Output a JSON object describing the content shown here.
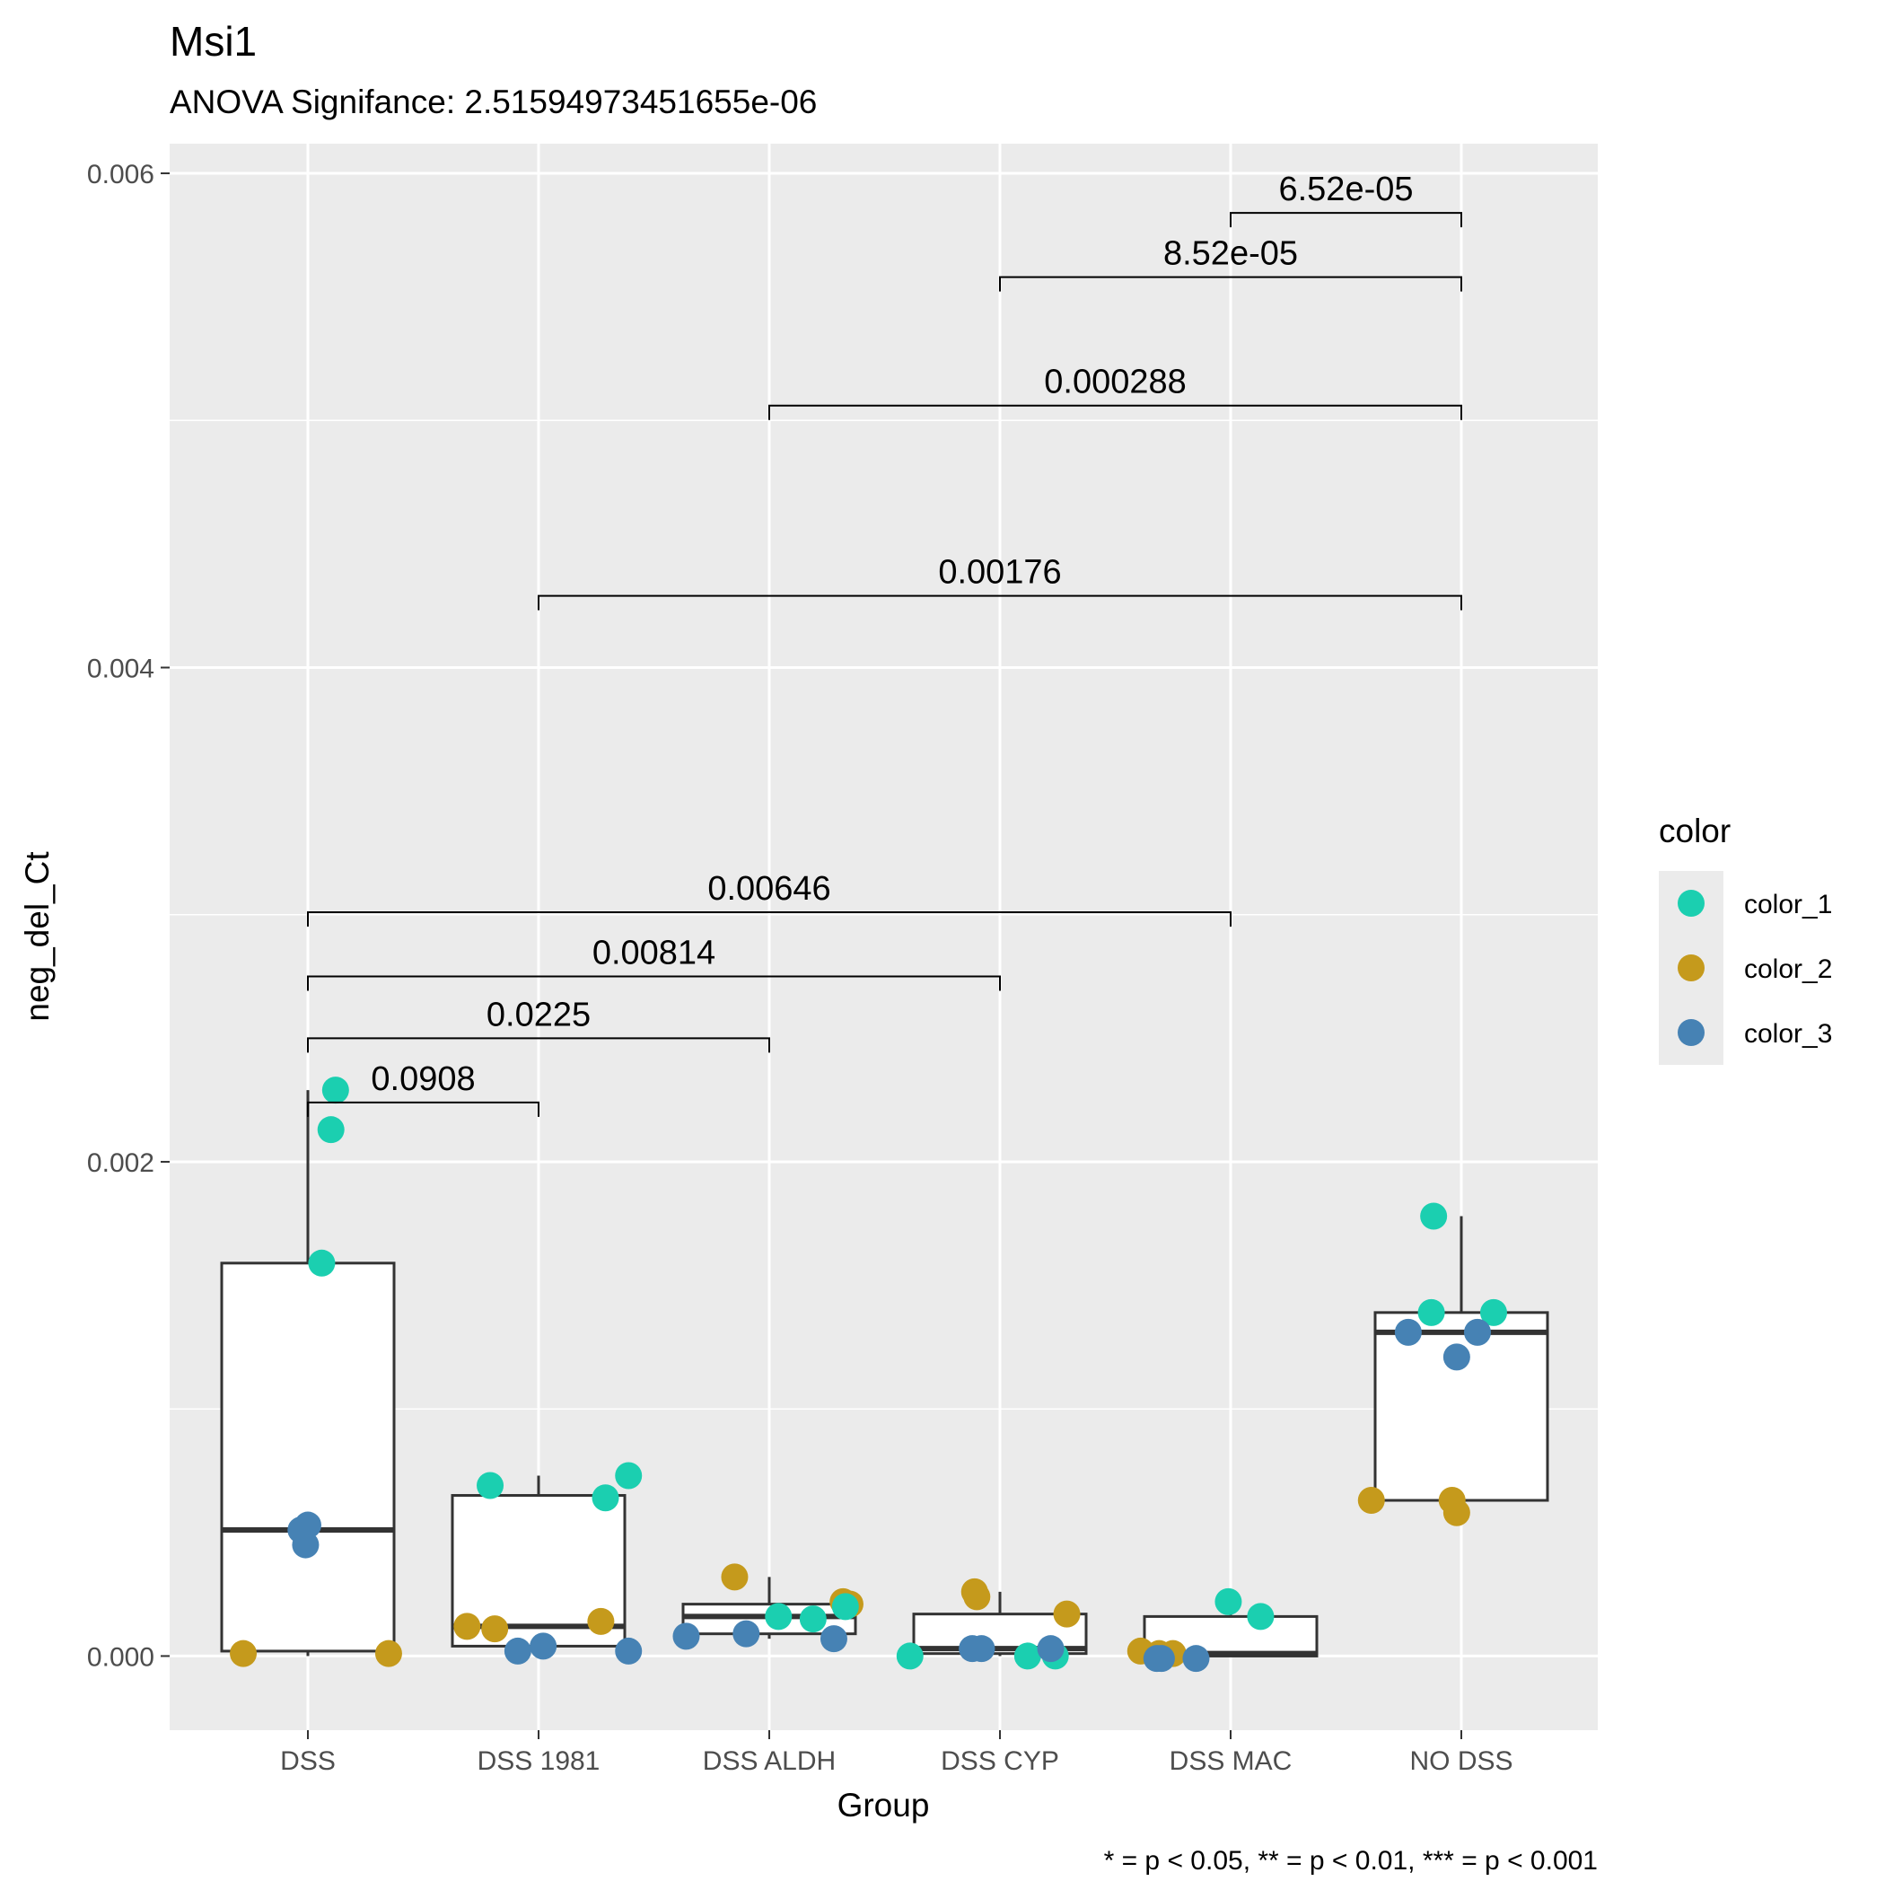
{
  "chart_data": {
    "type": "box",
    "title": "Msi1",
    "subtitle": "ANOVA Signifance: 2.51594973451655e-06",
    "xlabel": "Group",
    "ylabel": "neg_del_Ct",
    "caption": "* = p < 0.05, ** = p < 0.01, *** = p < 0.001",
    "categories": [
      "DSS",
      "DSS 1981",
      "DSS ALDH",
      "DSS CYP",
      "DSS MAC",
      "NO DSS"
    ],
    "yticks": [
      "0.000",
      "0.002",
      "0.004",
      "0.006"
    ],
    "ylim": [
      -0.0003,
      0.00612
    ],
    "grid": true,
    "legend": {
      "title": "color",
      "position": "right",
      "entries": [
        {
          "label": "color_1",
          "color": "#1BCFB0"
        },
        {
          "label": "color_2",
          "color": "#C59A1C"
        },
        {
          "label": "color_3",
          "color": "#4682B4"
        }
      ]
    },
    "boxes": [
      {
        "group": "DSS",
        "q1": 2e-05,
        "median": 0.00051,
        "q3": 0.00159,
        "wmin": 0.0,
        "wmax": 0.00229
      },
      {
        "group": "DSS 1981",
        "q1": 4e-05,
        "median": 0.00012,
        "q3": 0.00065,
        "wmin": 2e-05,
        "wmax": 0.00073
      },
      {
        "group": "DSS ALDH",
        "q1": 9e-05,
        "median": 0.00016,
        "q3": 0.00021,
        "wmin": 7e-05,
        "wmax": 0.00032
      },
      {
        "group": "DSS CYP",
        "q1": 1e-05,
        "median": 3e-05,
        "q3": 0.00017,
        "wmin": 0.0,
        "wmax": 0.00026
      },
      {
        "group": "DSS MAC",
        "q1": 0.0,
        "median": 1e-05,
        "q3": 0.00016,
        "wmin": 0.0,
        "wmax": 0.00022
      },
      {
        "group": "NO DSS",
        "q1": 0.00063,
        "median": 0.00131,
        "q3": 0.00139,
        "wmin": 0.00058,
        "wmax": 0.00178
      }
    ],
    "points": [
      {
        "group": "DSS",
        "dx": 0.12,
        "y": 0.00229,
        "series": "color_1"
      },
      {
        "group": "DSS",
        "dx": 0.1,
        "y": 0.00213,
        "series": "color_1"
      },
      {
        "group": "DSS",
        "dx": 0.06,
        "y": 0.00159,
        "series": "color_1"
      },
      {
        "group": "DSS",
        "dx": -0.03,
        "y": 0.00051,
        "series": "color_3"
      },
      {
        "group": "DSS",
        "dx": 0.0,
        "y": 0.00053,
        "series": "color_3"
      },
      {
        "group": "DSS",
        "dx": -0.01,
        "y": 0.00045,
        "series": "color_3"
      },
      {
        "group": "DSS",
        "dx": -0.28,
        "y": 1e-05,
        "series": "color_2"
      },
      {
        "group": "DSS",
        "dx": 0.35,
        "y": 1e-05,
        "series": "color_2"
      },
      {
        "group": "DSS 1981",
        "dx": -0.21,
        "y": 0.00069,
        "series": "color_1"
      },
      {
        "group": "DSS 1981",
        "dx": 0.29,
        "y": 0.00064,
        "series": "color_1"
      },
      {
        "group": "DSS 1981",
        "dx": 0.39,
        "y": 0.00073,
        "series": "color_1"
      },
      {
        "group": "DSS 1981",
        "dx": -0.31,
        "y": 0.00012,
        "series": "color_2"
      },
      {
        "group": "DSS 1981",
        "dx": -0.19,
        "y": 0.00011,
        "series": "color_2"
      },
      {
        "group": "DSS 1981",
        "dx": 0.27,
        "y": 0.00014,
        "series": "color_2"
      },
      {
        "group": "DSS 1981",
        "dx": -0.09,
        "y": 2e-05,
        "series": "color_3"
      },
      {
        "group": "DSS 1981",
        "dx": 0.02,
        "y": 4e-05,
        "series": "color_3"
      },
      {
        "group": "DSS 1981",
        "dx": 0.39,
        "y": 2e-05,
        "series": "color_3"
      },
      {
        "group": "DSS ALDH",
        "dx": -0.15,
        "y": 0.00032,
        "series": "color_2"
      },
      {
        "group": "DSS ALDH",
        "dx": 0.32,
        "y": 0.00022,
        "series": "color_2"
      },
      {
        "group": "DSS ALDH",
        "dx": 0.35,
        "y": 0.00021,
        "series": "color_2"
      },
      {
        "group": "DSS ALDH",
        "dx": 0.04,
        "y": 0.00016,
        "series": "color_1"
      },
      {
        "group": "DSS ALDH",
        "dx": 0.19,
        "y": 0.00015,
        "series": "color_1"
      },
      {
        "group": "DSS ALDH",
        "dx": 0.33,
        "y": 0.0002,
        "series": "color_1"
      },
      {
        "group": "DSS ALDH",
        "dx": -0.36,
        "y": 8e-05,
        "series": "color_3"
      },
      {
        "group": "DSS ALDH",
        "dx": -0.1,
        "y": 9e-05,
        "series": "color_3"
      },
      {
        "group": "DSS ALDH",
        "dx": 0.28,
        "y": 7e-05,
        "series": "color_3"
      },
      {
        "group": "DSS CYP",
        "dx": -0.11,
        "y": 0.00026,
        "series": "color_2"
      },
      {
        "group": "DSS CYP",
        "dx": -0.1,
        "y": 0.00024,
        "series": "color_2"
      },
      {
        "group": "DSS CYP",
        "dx": 0.29,
        "y": 0.00017,
        "series": "color_2"
      },
      {
        "group": "DSS CYP",
        "dx": -0.39,
        "y": 0.0,
        "series": "color_1"
      },
      {
        "group": "DSS CYP",
        "dx": 0.12,
        "y": 0.0,
        "series": "color_1"
      },
      {
        "group": "DSS CYP",
        "dx": 0.24,
        "y": 0.0,
        "series": "color_1"
      },
      {
        "group": "DSS CYP",
        "dx": -0.12,
        "y": 3e-05,
        "series": "color_3"
      },
      {
        "group": "DSS CYP",
        "dx": -0.08,
        "y": 3e-05,
        "series": "color_3"
      },
      {
        "group": "DSS CYP",
        "dx": 0.22,
        "y": 3e-05,
        "series": "color_3"
      },
      {
        "group": "DSS MAC",
        "dx": -0.01,
        "y": 0.00022,
        "series": "color_1"
      },
      {
        "group": "DSS MAC",
        "dx": 0.13,
        "y": 0.00016,
        "series": "color_1"
      },
      {
        "group": "DSS MAC",
        "dx": -0.39,
        "y": 2e-05,
        "series": "color_2"
      },
      {
        "group": "DSS MAC",
        "dx": -0.31,
        "y": 1e-05,
        "series": "color_2"
      },
      {
        "group": "DSS MAC",
        "dx": -0.25,
        "y": 1e-05,
        "series": "color_2"
      },
      {
        "group": "DSS MAC",
        "dx": -0.32,
        "y": -1e-05,
        "series": "color_3"
      },
      {
        "group": "DSS MAC",
        "dx": -0.3,
        "y": -1e-05,
        "series": "color_3"
      },
      {
        "group": "DSS MAC",
        "dx": -0.15,
        "y": -1e-05,
        "series": "color_3"
      },
      {
        "group": "NO DSS",
        "dx": -0.12,
        "y": 0.00178,
        "series": "color_1"
      },
      {
        "group": "NO DSS",
        "dx": -0.13,
        "y": 0.00139,
        "series": "color_1"
      },
      {
        "group": "NO DSS",
        "dx": 0.14,
        "y": 0.00139,
        "series": "color_1"
      },
      {
        "group": "NO DSS",
        "dx": -0.23,
        "y": 0.00131,
        "series": "color_3"
      },
      {
        "group": "NO DSS",
        "dx": 0.07,
        "y": 0.00131,
        "series": "color_3"
      },
      {
        "group": "NO DSS",
        "dx": -0.02,
        "y": 0.00121,
        "series": "color_3"
      },
      {
        "group": "NO DSS",
        "dx": -0.39,
        "y": 0.00063,
        "series": "color_2"
      },
      {
        "group": "NO DSS",
        "dx": -0.04,
        "y": 0.00063,
        "series": "color_2"
      },
      {
        "group": "NO DSS",
        "dx": -0.02,
        "y": 0.00058,
        "series": "color_2"
      }
    ],
    "comparisons": [
      {
        "from": "DSS",
        "to": "DSS 1981",
        "y": 0.00224,
        "label": "0.0908"
      },
      {
        "from": "DSS",
        "to": "DSS ALDH",
        "y": 0.0025,
        "label": "0.0225"
      },
      {
        "from": "DSS",
        "to": "DSS CYP",
        "y": 0.00275,
        "label": "0.00814"
      },
      {
        "from": "DSS",
        "to": "DSS MAC",
        "y": 0.00301,
        "label": "0.00646"
      },
      {
        "from": "DSS 1981",
        "to": "NO DSS",
        "y": 0.00429,
        "label": "0.00176"
      },
      {
        "from": "DSS ALDH",
        "to": "NO DSS",
        "y": 0.00506,
        "label": "0.000288"
      },
      {
        "from": "DSS CYP",
        "to": "NO DSS",
        "y": 0.00558,
        "label": "8.52e-05"
      },
      {
        "from": "DSS MAC",
        "to": "NO DSS",
        "y": 0.00584,
        "label": "6.52e-05"
      }
    ]
  }
}
